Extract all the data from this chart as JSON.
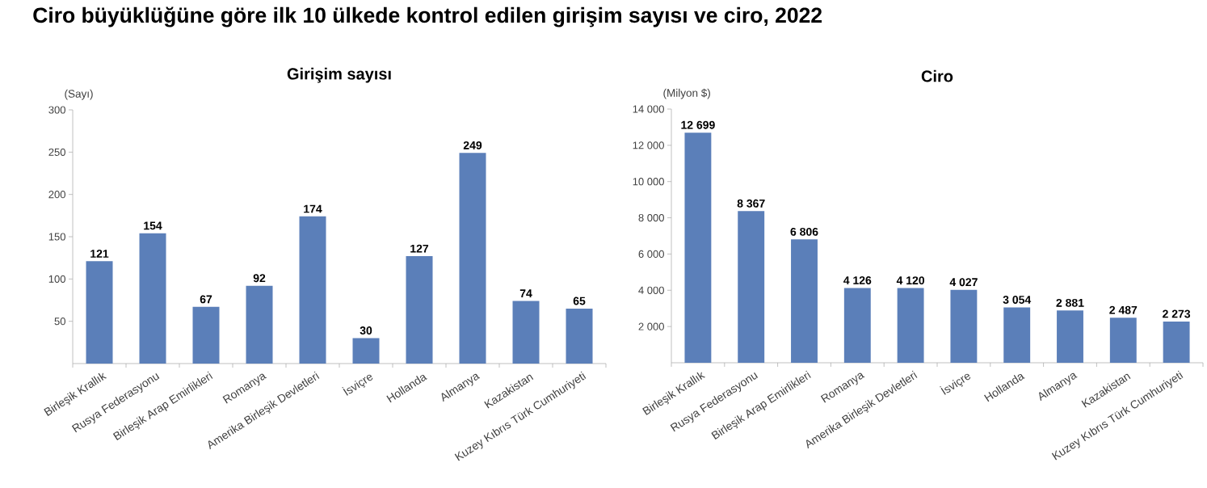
{
  "chart_data": [
    {
      "type": "bar",
      "title": "Girişim sayısı",
      "ylabel": "(Sayı)",
      "annotations": [
        "Ciro büyüklüğüne göre ilk 10 ülkede kontrol edilen girişim sayısı ve ciro, 2022"
      ],
      "categories": [
        "Birleşik Krallık",
        "Rusya Federasyonu",
        "Birleşik Arap Emirlikleri",
        "Romanya",
        "Amerika Birleşik Devletleri",
        "İsviçre",
        "Hollanda",
        "Almanya",
        "Kazakistan",
        "Kuzey Kıbrıs Türk Cumhuriyeti"
      ],
      "values": [
        121,
        154,
        67,
        92,
        174,
        30,
        127,
        249,
        74,
        65
      ],
      "color": "#5b7fb9",
      "ylim": [
        0,
        300
      ],
      "yticks": [
        50,
        100,
        150,
        200,
        250,
        300
      ],
      "data_labels": true
    },
    {
      "type": "bar",
      "title": "Ciro",
      "ylabel": "(Milyon $)",
      "categories": [
        "Birleşik Krallık",
        "Rusya Federasyonu",
        "Birleşik Arap Emirlikleri",
        "Romanya",
        "Amerika Birleşik Devletleri",
        "İsviçre",
        "Hollanda",
        "Almanya",
        "Kazakistan",
        "Kuzey Kıbrıs Türk Cumhuriyeti"
      ],
      "values": [
        12699,
        8367,
        6806,
        4126,
        4120,
        4027,
        3054,
        2881,
        2487,
        2273
      ],
      "value_labels": [
        "12 699",
        "8 367",
        "6 806",
        "4 126",
        "4 120",
        "4 027",
        "3 054",
        "2 881",
        "2 487",
        "2 273"
      ],
      "color": "#5b7fb9",
      "ylim": [
        0,
        14000
      ],
      "yticks": [
        {
          "value": 2000,
          "label": "2 000"
        },
        {
          "value": 4000,
          "label": "4 000"
        },
        {
          "value": 6000,
          "label": "6 000"
        },
        {
          "value": 8000,
          "label": "8 000"
        },
        {
          "value": 10000,
          "label": "10 000"
        },
        {
          "value": 12000,
          "label": "12 000"
        },
        {
          "value": 14000,
          "label": "14 000"
        }
      ]
    }
  ]
}
